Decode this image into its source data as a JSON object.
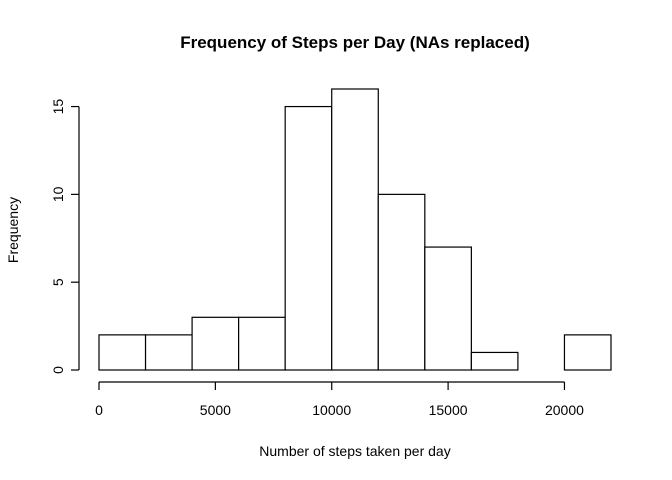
{
  "chart_data": {
    "type": "histogram",
    "title": "Frequency of Steps per Day (NAs replaced)",
    "xlabel": "Number of steps taken per day",
    "ylabel": "Frequency",
    "bins": [
      {
        "start": 0,
        "end": 2000,
        "count": 2
      },
      {
        "start": 2000,
        "end": 4000,
        "count": 2
      },
      {
        "start": 4000,
        "end": 6000,
        "count": 3
      },
      {
        "start": 6000,
        "end": 8000,
        "count": 3
      },
      {
        "start": 8000,
        "end": 10000,
        "count": 15
      },
      {
        "start": 10000,
        "end": 12000,
        "count": 16
      },
      {
        "start": 12000,
        "end": 14000,
        "count": 10
      },
      {
        "start": 14000,
        "end": 16000,
        "count": 7
      },
      {
        "start": 16000,
        "end": 18000,
        "count": 1
      },
      {
        "start": 18000,
        "end": 20000,
        "count": 0
      },
      {
        "start": 20000,
        "end": 22000,
        "count": 2
      }
    ],
    "xlim": [
      0,
      22000
    ],
    "ylim": [
      0,
      16
    ],
    "x_ticks": [
      0,
      5000,
      10000,
      15000,
      20000
    ],
    "y_ticks": [
      0,
      5,
      10,
      15
    ],
    "grid": false,
    "legend": "none"
  }
}
